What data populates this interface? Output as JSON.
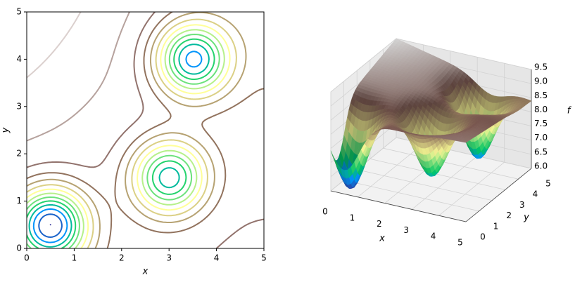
{
  "chart_data": [
    {
      "type": "contour",
      "xlabel": "x",
      "ylabel": "y",
      "xlim": [
        0,
        5
      ],
      "ylim": [
        0,
        5
      ],
      "xticks": [
        0,
        1,
        2,
        3,
        4,
        5
      ],
      "yticks": [
        0,
        1,
        2,
        3,
        4,
        5
      ],
      "levels": [
        6.0,
        6.25,
        6.5,
        6.75,
        7.0,
        7.25,
        7.5,
        7.75,
        8.0,
        8.25,
        8.5,
        8.75,
        9.0,
        9.25,
        9.5
      ],
      "corner_values": [
        [
          8.6,
          8.8
        ],
        [
          9.5,
          8.4
        ]
      ],
      "minima": [
        {
          "x": 0.5,
          "y": 0.5,
          "f": 6.0
        },
        {
          "x": 3,
          "y": 1.5,
          "f": 6.6
        },
        {
          "x": 3.5,
          "y": 4,
          "f": 6.4
        }
      ],
      "colormap": "terrain"
    },
    {
      "type": "surface3d",
      "xlabel": "x",
      "ylabel": "y",
      "zlabel": "f",
      "xlim": [
        0,
        5
      ],
      "ylim": [
        0,
        5
      ],
      "zlim": [
        6.0,
        9.5
      ],
      "xticks": [
        0,
        1,
        2,
        3,
        4,
        5
      ],
      "yticks": [
        0,
        1,
        2,
        3,
        4,
        5
      ],
      "zticks": [
        {
          "value": 6,
          "label": "6.0"
        },
        6.5,
        {
          "value": 7,
          "label": "7.0"
        },
        7.5,
        {
          "value": 8,
          "label": "8.0"
        },
        8.5,
        {
          "value": 9,
          "label": "9.0"
        },
        9.5
      ],
      "colormap": "terrain"
    }
  ]
}
